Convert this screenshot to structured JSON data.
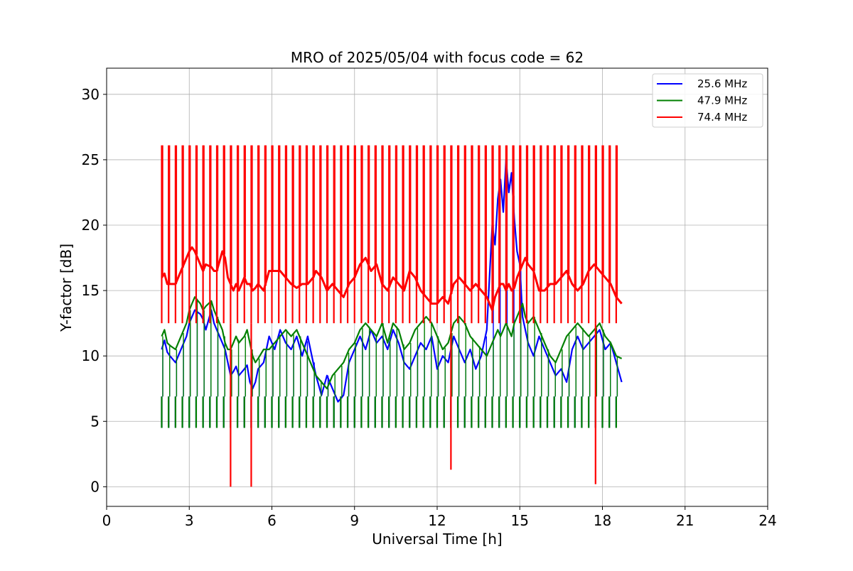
{
  "chart_data": {
    "type": "line",
    "title": "MRO of 2025/05/04 with focus code = 62",
    "xlabel": "Universal Time [h]",
    "ylabel": "Y-factor [dB]",
    "xlim": [
      0,
      24
    ],
    "ylim": [
      -1.5,
      32
    ],
    "xticks": [
      0,
      3,
      6,
      9,
      12,
      15,
      18,
      21,
      24
    ],
    "yticks": [
      0,
      5,
      10,
      15,
      20,
      25,
      30
    ],
    "grid": true,
    "legend_position": "top-right",
    "colors": {
      "25.6 MHz": "#0000ff",
      "47.9 MHz": "#008000",
      "74.4 MHz": "#ff0000"
    },
    "series": [
      {
        "name": "25.6 MHz",
        "x": [
          2.0,
          2.1,
          2.2,
          2.3,
          2.5,
          2.7,
          2.9,
          3.0,
          3.1,
          3.2,
          3.4,
          3.5,
          3.6,
          3.8,
          3.9,
          4.0,
          4.2,
          4.3,
          4.4,
          4.5,
          4.6,
          4.7,
          4.8,
          5.0,
          5.1,
          5.2,
          5.3,
          5.4,
          5.5,
          5.7,
          5.9,
          6.1,
          6.3,
          6.5,
          6.7,
          6.9,
          7.1,
          7.3,
          7.5,
          7.6,
          7.8,
          8.0,
          8.2,
          8.4,
          8.6,
          8.8,
          9.0,
          9.2,
          9.4,
          9.6,
          9.8,
          10.0,
          10.2,
          10.4,
          10.6,
          10.8,
          11.0,
          11.2,
          11.4,
          11.6,
          11.8,
          12.0,
          12.2,
          12.4,
          12.6,
          12.8,
          13.0,
          13.2,
          13.4,
          13.6,
          13.8,
          13.9,
          14.0,
          14.1,
          14.2,
          14.3,
          14.4,
          14.5,
          14.6,
          14.7,
          14.8,
          14.9,
          15.0,
          15.1,
          15.2,
          15.3,
          15.5,
          15.7,
          15.9,
          16.1,
          16.3,
          16.5,
          16.7,
          16.9,
          17.1,
          17.3,
          17.5,
          17.7,
          17.9,
          18.1,
          18.3,
          18.5,
          18.7
        ],
        "values": [
          10.5,
          11.2,
          10.3,
          10.0,
          9.5,
          10.5,
          11.5,
          12.5,
          13.0,
          13.5,
          13.2,
          12.8,
          12.0,
          13.5,
          12.5,
          12.0,
          11.0,
          10.5,
          9.5,
          8.5,
          8.8,
          9.2,
          8.5,
          9.0,
          9.3,
          8.0,
          7.5,
          8.0,
          9.0,
          9.5,
          11.5,
          10.5,
          12.0,
          11.0,
          10.5,
          11.5,
          10.0,
          11.5,
          9.5,
          8.5,
          7.0,
          8.5,
          7.5,
          6.5,
          7.0,
          9.5,
          10.5,
          11.5,
          10.5,
          12.0,
          11.0,
          11.5,
          10.5,
          12.0,
          11.0,
          9.5,
          9.0,
          10.0,
          11.0,
          10.5,
          11.5,
          9.0,
          10.0,
          9.5,
          11.5,
          10.5,
          9.5,
          10.5,
          9.0,
          10.0,
          12.0,
          16.0,
          20.0,
          18.5,
          22.0,
          23.5,
          21.0,
          25.0,
          22.5,
          24.0,
          20.5,
          18.0,
          17.0,
          13.0,
          12.0,
          11.0,
          10.0,
          11.5,
          10.5,
          9.5,
          8.5,
          9.0,
          8.0,
          10.5,
          11.5,
          10.5,
          11.0,
          11.5,
          12.0,
          10.5,
          11.0,
          9.5,
          8.0
        ],
        "pulse_high": 6.9,
        "pulse_low": 4.5
      },
      {
        "name": "47.9 MHz",
        "x": [
          2.0,
          2.1,
          2.2,
          2.3,
          2.5,
          2.7,
          2.9,
          3.0,
          3.1,
          3.2,
          3.4,
          3.5,
          3.6,
          3.8,
          3.9,
          4.0,
          4.2,
          4.3,
          4.4,
          4.5,
          4.6,
          4.7,
          4.8,
          5.0,
          5.1,
          5.2,
          5.3,
          5.4,
          5.5,
          5.7,
          5.9,
          6.1,
          6.3,
          6.5,
          6.7,
          6.9,
          7.1,
          7.3,
          7.5,
          7.6,
          7.8,
          8.0,
          8.2,
          8.4,
          8.6,
          8.8,
          9.0,
          9.2,
          9.4,
          9.6,
          9.8,
          10.0,
          10.2,
          10.4,
          10.6,
          10.8,
          11.0,
          11.2,
          11.4,
          11.6,
          11.8,
          12.0,
          12.2,
          12.4,
          12.6,
          12.8,
          13.0,
          13.2,
          13.4,
          13.6,
          13.8,
          13.9,
          14.0,
          14.1,
          14.2,
          14.3,
          14.4,
          14.5,
          14.6,
          14.7,
          14.8,
          14.9,
          15.0,
          15.1,
          15.2,
          15.3,
          15.5,
          15.7,
          15.9,
          16.1,
          16.3,
          16.5,
          16.7,
          16.9,
          17.1,
          17.3,
          17.5,
          17.7,
          17.9,
          18.1,
          18.3,
          18.5,
          18.7
        ],
        "values": [
          11.5,
          12.0,
          11.0,
          10.8,
          10.5,
          11.5,
          12.5,
          13.5,
          14.0,
          14.5,
          14.0,
          13.5,
          13.8,
          14.2,
          13.5,
          13.0,
          12.0,
          11.0,
          10.5,
          10.5,
          11.0,
          11.5,
          11.0,
          11.5,
          12.0,
          11.0,
          10.0,
          9.5,
          9.8,
          10.5,
          10.5,
          11.0,
          11.5,
          12.0,
          11.5,
          12.0,
          11.0,
          10.0,
          9.0,
          8.5,
          8.0,
          7.5,
          8.5,
          9.0,
          9.5,
          10.5,
          11.0,
          12.0,
          12.5,
          12.0,
          11.5,
          12.5,
          11.0,
          12.5,
          12.0,
          10.5,
          11.0,
          12.0,
          12.5,
          13.0,
          12.5,
          11.5,
          10.5,
          11.0,
          12.5,
          13.0,
          12.5,
          11.5,
          11.0,
          10.5,
          10.0,
          10.5,
          11.0,
          11.5,
          12.0,
          11.5,
          12.0,
          12.5,
          12.0,
          11.5,
          12.5,
          13.0,
          13.5,
          14.0,
          13.0,
          12.5,
          13.0,
          12.0,
          11.0,
          10.0,
          9.5,
          10.5,
          11.5,
          12.0,
          12.5,
          12.0,
          11.5,
          12.0,
          12.5,
          11.5,
          11.0,
          10.0,
          9.8
        ],
        "pulse_high": 6.9,
        "pulse_low": 4.5
      },
      {
        "name": "74.4 MHz",
        "x": [
          2.0,
          2.1,
          2.2,
          2.3,
          2.5,
          2.7,
          2.9,
          3.0,
          3.1,
          3.2,
          3.4,
          3.5,
          3.6,
          3.8,
          3.9,
          4.0,
          4.2,
          4.3,
          4.4,
          4.5,
          4.6,
          4.7,
          4.8,
          5.0,
          5.1,
          5.2,
          5.3,
          5.4,
          5.5,
          5.7,
          5.9,
          6.1,
          6.3,
          6.5,
          6.7,
          6.9,
          7.1,
          7.3,
          7.5,
          7.6,
          7.8,
          8.0,
          8.2,
          8.4,
          8.6,
          8.8,
          9.0,
          9.2,
          9.4,
          9.6,
          9.8,
          10.0,
          10.2,
          10.4,
          10.6,
          10.8,
          11.0,
          11.2,
          11.4,
          11.6,
          11.8,
          12.0,
          12.2,
          12.4,
          12.6,
          12.8,
          13.0,
          13.2,
          13.4,
          13.6,
          13.8,
          13.9,
          14.0,
          14.1,
          14.2,
          14.3,
          14.4,
          14.5,
          14.6,
          14.7,
          14.8,
          14.9,
          15.0,
          15.1,
          15.2,
          15.3,
          15.5,
          15.7,
          15.9,
          16.1,
          16.3,
          16.5,
          16.7,
          16.9,
          17.1,
          17.3,
          17.5,
          17.7,
          17.9,
          18.1,
          18.3,
          18.5,
          18.7
        ],
        "values": [
          16.0,
          16.3,
          15.5,
          15.5,
          15.5,
          16.5,
          17.5,
          18.0,
          18.3,
          18.0,
          17.0,
          16.5,
          17.0,
          16.8,
          16.5,
          16.5,
          18.0,
          17.5,
          16.0,
          15.5,
          15.0,
          15.5,
          15.0,
          16.0,
          15.5,
          15.5,
          15.0,
          15.2,
          15.5,
          15.0,
          16.5,
          16.5,
          16.5,
          16.0,
          15.5,
          15.2,
          15.5,
          15.5,
          16.0,
          16.5,
          16.0,
          15.0,
          15.5,
          15.0,
          14.5,
          15.5,
          16.0,
          17.0,
          17.5,
          16.5,
          17.0,
          15.5,
          15.0,
          16.0,
          15.5,
          15.0,
          16.5,
          16.0,
          15.0,
          14.5,
          14.0,
          14.0,
          14.5,
          14.0,
          15.5,
          16.0,
          15.5,
          15.0,
          15.5,
          15.0,
          14.5,
          14.0,
          13.5,
          14.5,
          15.0,
          15.5,
          15.5,
          15.0,
          15.5,
          15.0,
          15.2,
          16.0,
          16.5,
          17.0,
          17.5,
          17.0,
          16.5,
          15.0,
          15.0,
          15.5,
          15.5,
          16.0,
          16.5,
          15.5,
          15.0,
          15.5,
          16.5,
          17.0,
          16.5,
          16.0,
          15.5,
          14.5,
          14.0
        ],
        "pulse_high": 26.1,
        "pulse_low": 12.5
      }
    ],
    "pulse_times": [
      2.0,
      2.25,
      2.5,
      2.75,
      3.0,
      3.25,
      3.5,
      3.75,
      4.0,
      4.25,
      4.5,
      4.75,
      5.0,
      5.25,
      5.5,
      5.75,
      6.0,
      6.25,
      6.5,
      6.75,
      7.0,
      7.25,
      7.5,
      7.75,
      8.0,
      8.25,
      8.5,
      8.75,
      9.0,
      9.25,
      9.5,
      9.75,
      10.0,
      10.25,
      10.5,
      10.75,
      11.0,
      11.25,
      11.5,
      11.75,
      12.0,
      12.25,
      12.5,
      12.75,
      13.0,
      13.25,
      13.5,
      13.75,
      14.0,
      14.25,
      14.5,
      14.75,
      15.0,
      15.25,
      15.5,
      15.75,
      16.0,
      16.25,
      16.5,
      16.75,
      17.0,
      17.25,
      17.5,
      17.75,
      18.0,
      18.25,
      18.5
    ],
    "dropouts": [
      {
        "x": 4.5,
        "y": 0.0
      },
      {
        "x": 5.25,
        "y": 0.0
      },
      {
        "x": 12.5,
        "y": 1.3
      },
      {
        "x": 17.75,
        "y": 0.2
      }
    ]
  }
}
